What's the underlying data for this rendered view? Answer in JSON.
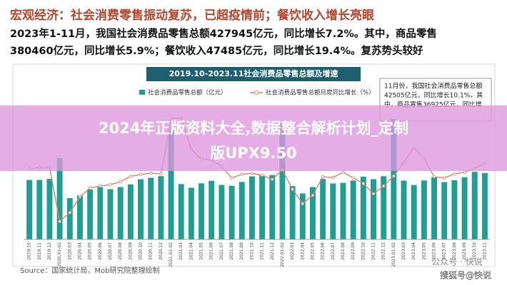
{
  "header": {
    "title": "宏观经济：社会消费零售振动复苏，已超疫情前；餐饮收入增长亮眼",
    "lines": [
      "2023年1-11月，我国社会消费品零售总额427945亿元，同比增长7.2%。其中，商品零售",
      "380460亿元，同比增长5.9%；餐饮收入47485亿元，同比增长19.4%。复苏势头较好"
    ]
  },
  "chart_data": {
    "type": "bar",
    "title": "2019.10-2023.11社会消费品零售总额及增速",
    "categories": [
      "2019.10",
      "2019.11",
      "2019.12",
      "2020.01-02",
      "2020.03",
      "2020.04",
      "2020.05",
      "2020.06",
      "2020.07",
      "2020.08",
      "2020.09",
      "2020.10",
      "2020.11",
      "2020.12",
      "2021.01-02",
      "2021.03",
      "2021.04",
      "2021.05",
      "2021.06",
      "2021.07",
      "2021.08",
      "2021.09",
      "2021.10",
      "2021.11",
      "2021.12",
      "2022.01-02",
      "2022.03",
      "2022.04",
      "2022.05",
      "2022.06",
      "2022.07",
      "2022.08",
      "2022.09",
      "2022.10",
      "2022.11",
      "2022.12",
      "2023.01-02",
      "2023.03",
      "2023.04",
      "2023.05",
      "2023.06",
      "2023.07",
      "2023.08",
      "2023.09",
      "2023.10",
      "2023.11"
    ],
    "series": [
      {
        "name": "社会消费品零售总额（亿元）",
        "color": "#1f9e94",
        "values": [
          38104,
          38094,
          38777,
          52130,
          26450,
          28178,
          31973,
          33526,
          32203,
          33571,
          35295,
          38576,
          39514,
          40566,
          69737,
          35484,
          33153,
          35945,
          37586,
          34925,
          34395,
          36833,
          40454,
          41043,
          41269,
          74426,
          34233,
          29483,
          33547,
          38742,
          35870,
          36258,
          37745,
          40271,
          38615,
          40542,
          77067,
          37715,
          34910,
          37803,
          39951,
          36761,
          37933,
          39826,
          43333,
          42505
        ]
      },
      {
        "name": "社会消费品零售总额月度同比增长（%）",
        "color": "#d9826b",
        "type": "line",
        "axis": "y2",
        "values": [
          7.2,
          8.0,
          8.0,
          -20.5,
          -15.8,
          -7.5,
          -2.8,
          -1.8,
          -1.1,
          0.5,
          3.3,
          4.3,
          5.0,
          4.6,
          33.8,
          34.2,
          17.7,
          12.4,
          12.1,
          8.5,
          2.5,
          4.4,
          4.9,
          3.9,
          1.7,
          6.7,
          -3.5,
          -11.1,
          -6.7,
          3.1,
          2.7,
          5.4,
          2.5,
          -0.5,
          -5.9,
          -1.8,
          3.5,
          10.6,
          18.4,
          12.7,
          3.1,
          2.5,
          4.6,
          5.5,
          7.6,
          10.1
        ]
      }
    ],
    "ylim": [
      0,
      85000
    ],
    "y2lim": [
      -30,
      40
    ],
    "annotation": [
      "11月份，我国社会消费品零售总额",
      "42505亿元，同比增长10.1%，其",
      "中，商品零售36925亿元，同比增"
    ]
  },
  "source": "Source：国家统计局，Mob研究院整理绘制",
  "overlay": [
    "2024年正版资料大全,数据整合解析计划_定制",
    "版UPX9.50"
  ],
  "watermarks": [
    "公众号 · 快说",
    "搜狐号@快说"
  ]
}
